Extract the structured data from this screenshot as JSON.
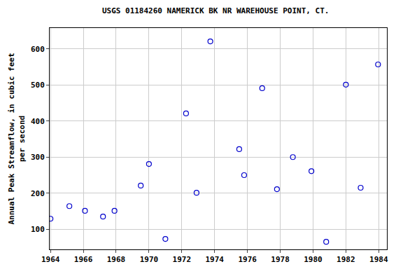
{
  "chart_data": {
    "type": "scatter",
    "title": "USGS 01184260 NAMERICK BK NR WAREHOUSE POINT, CT.",
    "y_label": "Annual Peak Streamflow, in cubic feet\nper second",
    "x": [
      1964.0,
      1965.15,
      1966.1,
      1967.2,
      1967.9,
      1969.5,
      1970.0,
      1971.0,
      1972.26,
      1972.9,
      1973.74,
      1975.5,
      1975.8,
      1976.9,
      1977.8,
      1978.77,
      1979.9,
      1980.8,
      1982.0,
      1982.9,
      1983.96
    ],
    "values": [
      129,
      164,
      151,
      135,
      151,
      221,
      281,
      73,
      421,
      201,
      621,
      322,
      250,
      491,
      211,
      300,
      261,
      65,
      501,
      215,
      557
    ],
    "color": "#0000cc",
    "marker": "open-circle",
    "xlim": [
      1963.95,
      1984.5
    ],
    "xticks": [
      1964,
      1966,
      1968,
      1970,
      1972,
      1974,
      1976,
      1978,
      1980,
      1982,
      1984
    ],
    "ylim": [
      44,
      658
    ],
    "yticks": [
      100,
      200,
      300,
      400,
      500,
      600
    ],
    "grid": true
  }
}
